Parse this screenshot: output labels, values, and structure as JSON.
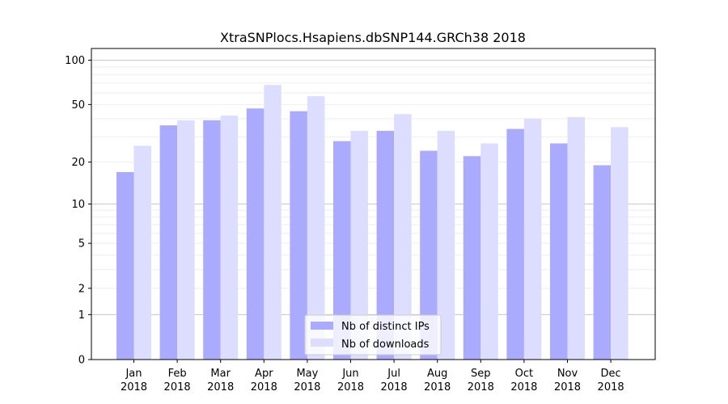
{
  "chart_data": {
    "type": "bar",
    "title": "XtraSNPlocs.Hsapiens.dbSNP144.GRCh38 2018",
    "xlabel": "",
    "ylabel": "",
    "yscale": "log(1+y)",
    "ylim": [
      0,
      120
    ],
    "y_ticks": [
      0,
      1,
      2,
      5,
      10,
      20,
      50,
      100
    ],
    "y_tick_labels": [
      "0",
      "1",
      "2",
      "5",
      "10",
      "20",
      "50",
      "100"
    ],
    "grid": true,
    "legend_position": "bottom-center",
    "categories": [
      {
        "month": "Jan",
        "year": "2018"
      },
      {
        "month": "Feb",
        "year": "2018"
      },
      {
        "month": "Mar",
        "year": "2018"
      },
      {
        "month": "Apr",
        "year": "2018"
      },
      {
        "month": "May",
        "year": "2018"
      },
      {
        "month": "Jun",
        "year": "2018"
      },
      {
        "month": "Jul",
        "year": "2018"
      },
      {
        "month": "Aug",
        "year": "2018"
      },
      {
        "month": "Sep",
        "year": "2018"
      },
      {
        "month": "Oct",
        "year": "2018"
      },
      {
        "month": "Nov",
        "year": "2018"
      },
      {
        "month": "Dec",
        "year": "2018"
      }
    ],
    "series": [
      {
        "name": "Nb of distinct IPs",
        "color": "#aaaaff",
        "values": [
          17,
          36,
          39,
          47,
          45,
          28,
          33,
          24,
          22,
          34,
          27,
          19
        ]
      },
      {
        "name": "Nb of downloads",
        "color": "#ddddff",
        "values": [
          26,
          39,
          42,
          68,
          57,
          33,
          43,
          33,
          27,
          40,
          41,
          35
        ]
      }
    ]
  }
}
